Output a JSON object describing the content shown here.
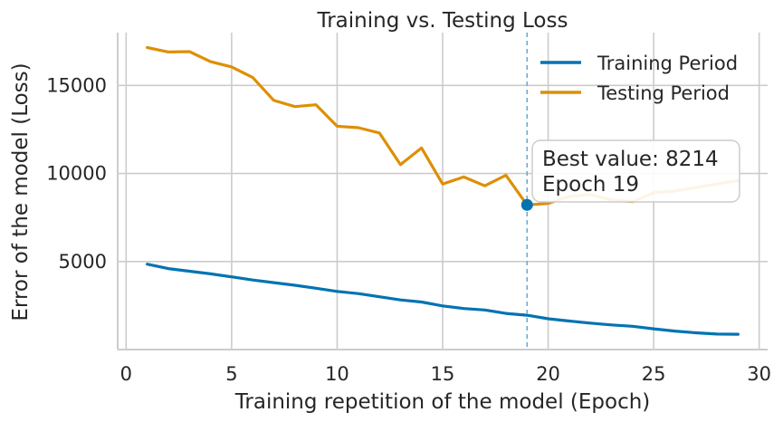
{
  "chart_data": {
    "type": "line",
    "title": "Training vs. Testing Loss",
    "xlabel": "Training repetition of the model (Epoch)",
    "ylabel": "Error of the model (Loss)",
    "xlim": [
      -0.4,
      30.4
    ],
    "ylim": [
      0,
      18000
    ],
    "x_ticks": [
      0,
      5,
      10,
      15,
      20,
      25,
      30
    ],
    "x_tick_labels": [
      "0",
      "5",
      "10",
      "15",
      "20",
      "25",
      "30"
    ],
    "y_ticks": [
      5000,
      10000,
      15000
    ],
    "y_tick_labels": [
      "5000",
      "10000",
      "15000"
    ],
    "grid": true,
    "legend_position": "top-right",
    "x": [
      1,
      2,
      3,
      4,
      5,
      6,
      7,
      8,
      9,
      10,
      11,
      12,
      13,
      14,
      15,
      16,
      17,
      18,
      19,
      20,
      21,
      22,
      23,
      24,
      25,
      26,
      27,
      28,
      29
    ],
    "series": [
      {
        "name": "Training Period",
        "color": "#0173b2",
        "values": [
          4850,
          4600,
          4450,
          4300,
          4130,
          3950,
          3800,
          3650,
          3480,
          3300,
          3180,
          3000,
          2820,
          2700,
          2480,
          2330,
          2250,
          2050,
          1950,
          1750,
          1620,
          1500,
          1400,
          1320,
          1180,
          1050,
          950,
          880,
          870
        ]
      },
      {
        "name": "Testing Period",
        "color": "#de8f05",
        "values": [
          17150,
          16900,
          16920,
          16350,
          16050,
          15450,
          14150,
          13800,
          13900,
          12680,
          12600,
          12300,
          10500,
          11450,
          9400,
          9800,
          9300,
          9900,
          8214,
          8300,
          8700,
          8800,
          8500,
          8400,
          8900,
          9000,
          9200,
          9400,
          9600
        ]
      }
    ],
    "best_marker": {
      "x": 19,
      "y": 8214,
      "color": "#0173b2",
      "vline_color": "#67a9cf"
    },
    "annotation": {
      "line1": "Best value: 8214",
      "line2": "Epoch 19"
    }
  }
}
